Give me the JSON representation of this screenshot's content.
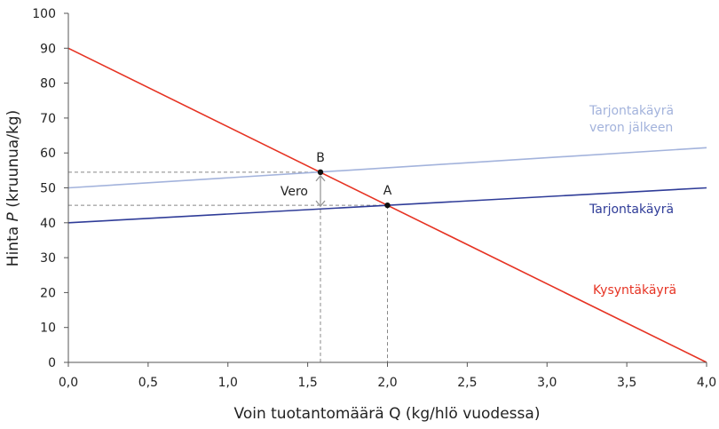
{
  "chart_data": {
    "type": "line",
    "xlabel": "Voin tuotantomäärä Q (kg/hlö vuodessa)",
    "ylabel_prefix": "Hinta ",
    "ylabel_var": "P",
    "ylabel_suffix": " (kruunua/kg)",
    "xlim": [
      0,
      4
    ],
    "ylim": [
      0,
      100
    ],
    "xticks": [
      0,
      0.5,
      1,
      1.5,
      2,
      2.5,
      3,
      3.5,
      4
    ],
    "xtick_labels": [
      "0,0",
      "0,5",
      "1,0",
      "1,5",
      "2,0",
      "2,5",
      "3,0",
      "3,5",
      "4,0"
    ],
    "yticks": [
      0,
      10,
      20,
      30,
      40,
      50,
      60,
      70,
      80,
      90,
      100
    ],
    "ytick_labels": [
      "0",
      "10",
      "20",
      "30",
      "40",
      "50",
      "60",
      "70",
      "80",
      "90",
      "100"
    ],
    "grid": false,
    "series": [
      {
        "name": "Kysyntäkäyrä",
        "x": [
          0,
          4
        ],
        "y": [
          90,
          0
        ],
        "color": "#e63323"
      },
      {
        "name": "Tarjontakäyrä",
        "x": [
          0,
          4
        ],
        "y": [
          40,
          50
        ],
        "color": "#2f3c98"
      },
      {
        "name": "Tarjontakäyrä veron jälkeen",
        "name_lines": [
          "Tarjontakäyrä",
          "veron jälkeen"
        ],
        "x": [
          0,
          4
        ],
        "y": [
          50,
          61.5
        ],
        "color": "#a3b3dc"
      }
    ],
    "points": [
      {
        "label": "A",
        "x": 2.0,
        "y": 45
      },
      {
        "label": "B",
        "x": 1.58,
        "y": 54.5
      }
    ],
    "annotations": [
      {
        "text": "Vero",
        "x": 1.58,
        "y_from": 54.5,
        "y_to": 44
      }
    ]
  }
}
